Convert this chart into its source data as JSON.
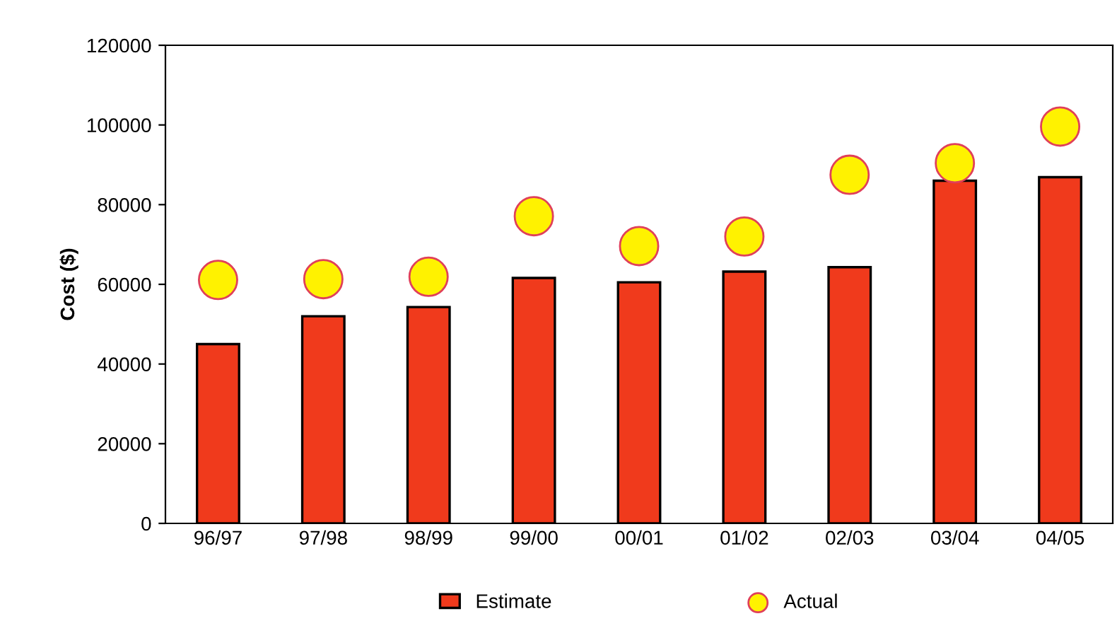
{
  "chart_data": {
    "type": "bar",
    "ylabel": "Cost ($)",
    "categories": [
      "96/97",
      "97/98",
      "98/99",
      "99/00",
      "00/01",
      "01/02",
      "02/03",
      "03/04",
      "04/05"
    ],
    "series": [
      {
        "name": "Estimate",
        "color": "#f03a1c",
        "values": [
          45000,
          52000,
          54300,
          61600,
          60500,
          63200,
          64300,
          86000,
          86900
        ]
      },
      {
        "name": "Actual",
        "type": "scatter",
        "color": "#fff200",
        "marker": "circle",
        "values": [
          61100,
          61300,
          61900,
          77100,
          69600,
          72000,
          87500,
          90400,
          99600
        ]
      }
    ],
    "ylim": [
      0,
      120000
    ],
    "yticks": [
      0,
      20000,
      40000,
      60000,
      80000,
      100000,
      120000
    ],
    "grid": false,
    "legend": "bottom"
  }
}
